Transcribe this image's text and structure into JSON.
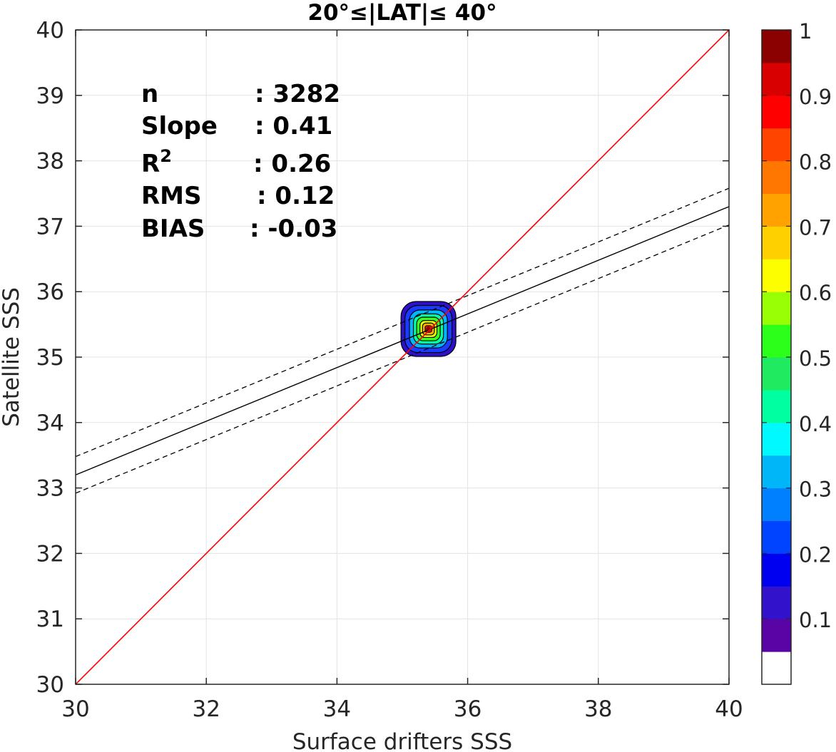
{
  "chart_data": {
    "type": "heatmap",
    "title": "20°≤|LAT|≤ 40°",
    "xlabel": "Surface drifters SSS",
    "ylabel": "Satellite SSS",
    "xlim": [
      30,
      40
    ],
    "ylim": [
      30,
      40
    ],
    "xticks": [
      "30",
      "32",
      "34",
      "36",
      "38",
      "40"
    ],
    "yticks": [
      "30",
      "31",
      "32",
      "33",
      "34",
      "35",
      "36",
      "37",
      "38",
      "39",
      "40"
    ],
    "grid": true,
    "stats": [
      {
        "label": "n",
        "value": ": 3282"
      },
      {
        "label": "Slope",
        "value": ": 0.41"
      },
      {
        "label": "R",
        "sup": "2",
        "value": ": 0.26"
      },
      {
        "label": "RMS",
        "value": ": 0.12"
      },
      {
        "label": "BIAS",
        "value": ": -0.03"
      }
    ],
    "identity_line": {
      "x": [
        30,
        40
      ],
      "y": [
        30,
        40
      ],
      "color": "#ff0000"
    },
    "fit_line": {
      "x": [
        30,
        40
      ],
      "y": [
        33.2,
        37.3
      ],
      "color": "#000000"
    },
    "fit_bounds": [
      {
        "x": [
          30,
          40
        ],
        "y": [
          33.48,
          37.58
        ]
      },
      {
        "x": [
          30,
          40
        ],
        "y": [
          32.92,
          37.02
        ]
      }
    ],
    "density": {
      "center": [
        35.4,
        35.43
      ],
      "half_width_x": [
        0.42,
        0.36,
        0.29,
        0.23,
        0.18,
        0.13,
        0.09,
        0.05
      ],
      "half_width_y": [
        0.42,
        0.36,
        0.29,
        0.23,
        0.18,
        0.13,
        0.09,
        0.05
      ],
      "level_colors": [
        "#2d10c8",
        "#1a3cff",
        "#00b7ff",
        "#00ffa6",
        "#39ff1f",
        "#e5ff00",
        "#ffb000",
        "#ff2a00"
      ]
    },
    "colorbar": {
      "range": [
        0,
        1
      ],
      "ticks": [
        "0.1",
        "0.2",
        "0.3",
        "0.4",
        "0.5",
        "0.6",
        "0.7",
        "0.8",
        "0.9",
        "1"
      ],
      "colors": [
        "#ffffff",
        "#5a04a6",
        "#3312cc",
        "#0000f0",
        "#0044ff",
        "#0080ff",
        "#00b6f8",
        "#00f8ff",
        "#00ffa0",
        "#1fea60",
        "#2bff1a",
        "#98ff04",
        "#fdff00",
        "#ffd000",
        "#ffa200",
        "#ff7700",
        "#ff4400",
        "#ff0000",
        "#d80000",
        "#8b0000"
      ]
    }
  }
}
